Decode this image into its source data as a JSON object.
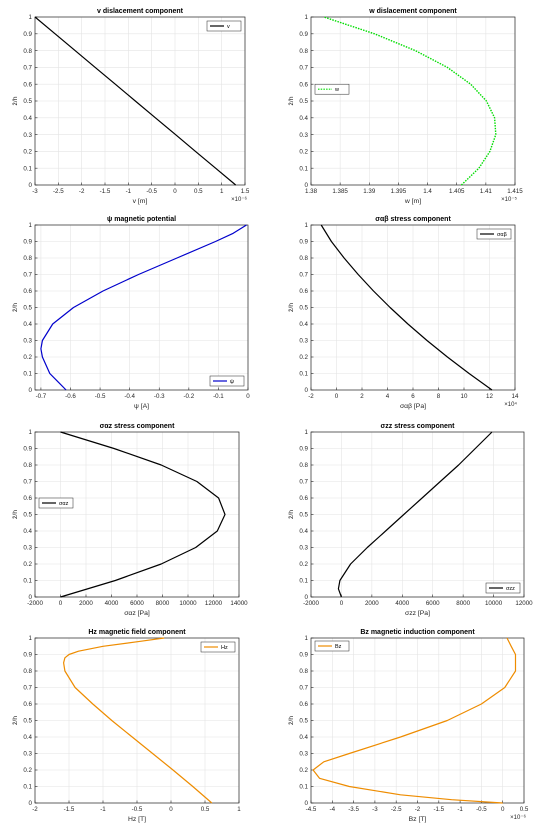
{
  "chart_data": [
    {
      "type": "line",
      "title": "v dislacement component",
      "xlabel": "v [m]",
      "ylabel": "z̄/h",
      "xlim": [
        -3,
        1.5
      ],
      "ylim": [
        0,
        1
      ],
      "xticks": [
        -3,
        -2.5,
        -2,
        -1.5,
        -1,
        -0.5,
        0,
        0.5,
        1,
        1.5
      ],
      "xtick_labels": [
        "-3",
        "-2.5",
        "-2",
        "-1.5",
        "-1",
        "-0.5",
        "0",
        "0.5",
        "1",
        "1.5"
      ],
      "x_exponent": "×10⁻⁶",
      "yticks": [
        0,
        0.1,
        0.2,
        0.3,
        0.4,
        0.5,
        0.6,
        0.7,
        0.8,
        0.9,
        1
      ],
      "ytick_labels": [
        "0",
        "0.1",
        "0.2",
        "0.3",
        "0.4",
        "0.5",
        "0.6",
        "0.7",
        "0.8",
        "0.9",
        "1"
      ],
      "grid": true,
      "legend": {
        "position": "top-right",
        "label": "v"
      },
      "series": [
        {
          "name": "v",
          "color": "#000000",
          "dash": "solid",
          "y": [
            0,
            0.1,
            0.2,
            0.3,
            0.4,
            0.5,
            0.6,
            0.7,
            0.8,
            0.9,
            1
          ],
          "x": [
            1.3,
            0.87,
            0.44,
            0.01,
            -0.42,
            -0.85,
            -1.28,
            -1.71,
            -2.14,
            -2.57,
            -3.0
          ]
        }
      ]
    },
    {
      "type": "line",
      "title": "w dislacement component",
      "xlabel": "w [m]",
      "ylabel": "z̄/h",
      "xlim": [
        1.38,
        1.415
      ],
      "ylim": [
        0,
        1
      ],
      "xticks": [
        1.38,
        1.385,
        1.39,
        1.395,
        1.4,
        1.405,
        1.41,
        1.415
      ],
      "xtick_labels": [
        "1.38",
        "1.385",
        "1.39",
        "1.395",
        "1.4",
        "1.405",
        "1.41",
        "1.415"
      ],
      "x_exponent": "×10⁻⁵",
      "yticks": [
        0,
        0.1,
        0.2,
        0.3,
        0.4,
        0.5,
        0.6,
        0.7,
        0.8,
        0.9,
        1
      ],
      "ytick_labels": [
        "0",
        "0.1",
        "0.2",
        "0.3",
        "0.4",
        "0.5",
        "0.6",
        "0.7",
        "0.8",
        "0.9",
        "1"
      ],
      "grid": true,
      "legend": {
        "position": "middle-left",
        "label": "w"
      },
      "series": [
        {
          "name": "w",
          "color": "#00dd00",
          "dash": "dotted",
          "y": [
            0,
            0.1,
            0.2,
            0.3,
            0.4,
            0.5,
            0.6,
            0.7,
            0.8,
            0.9,
            1
          ],
          "x": [
            1.4058,
            1.4088,
            1.4107,
            1.4117,
            1.4115,
            1.4101,
            1.4074,
            1.4034,
            1.3979,
            1.3909,
            1.3822
          ]
        }
      ]
    },
    {
      "type": "line",
      "title": "ψ magnetic potential",
      "xlabel": "ψ [A]",
      "ylabel": "z̄/h",
      "xlim": [
        -0.72,
        0
      ],
      "ylim": [
        0,
        1
      ],
      "xticks": [
        -0.7,
        -0.6,
        -0.5,
        -0.4,
        -0.3,
        -0.2,
        -0.1,
        0
      ],
      "xtick_labels": [
        "-0.7",
        "-0.6",
        "-0.5",
        "-0.4",
        "-0.3",
        "-0.2",
        "-0.1",
        "0"
      ],
      "x_exponent": "",
      "yticks": [
        0,
        0.1,
        0.2,
        0.3,
        0.4,
        0.5,
        0.6,
        0.7,
        0.8,
        0.9,
        1
      ],
      "ytick_labels": [
        "0",
        "0.1",
        "0.2",
        "0.3",
        "0.4",
        "0.5",
        "0.6",
        "0.7",
        "0.8",
        "0.9",
        "1"
      ],
      "grid": true,
      "legend": {
        "position": "bottom-right",
        "label": "ψ"
      },
      "series": [
        {
          "name": "ψ",
          "color": "#0000cc",
          "dash": "solid",
          "y": [
            0,
            0.1,
            0.2,
            0.25,
            0.3,
            0.4,
            0.5,
            0.6,
            0.7,
            0.8,
            0.9,
            0.95,
            1
          ],
          "x": [
            -0.615,
            -0.67,
            -0.695,
            -0.7,
            -0.695,
            -0.66,
            -0.59,
            -0.49,
            -0.37,
            -0.24,
            -0.11,
            -0.05,
            -0.005
          ]
        }
      ]
    },
    {
      "type": "line",
      "title": "σαβ stress component",
      "xlabel": "σαβ [Pa]",
      "ylabel": "z̄/h",
      "xlim": [
        -2,
        14
      ],
      "ylim": [
        0,
        1
      ],
      "xticks": [
        -2,
        0,
        2,
        4,
        6,
        8,
        10,
        12,
        14
      ],
      "xtick_labels": [
        "-2",
        "0",
        "2",
        "4",
        "6",
        "8",
        "10",
        "12",
        "14"
      ],
      "x_exponent": "×10⁴",
      "yticks": [
        0,
        0.1,
        0.2,
        0.3,
        0.4,
        0.5,
        0.6,
        0.7,
        0.8,
        0.9,
        1
      ],
      "ytick_labels": [
        "0",
        "0.1",
        "0.2",
        "0.3",
        "0.4",
        "0.5",
        "0.6",
        "0.7",
        "0.8",
        "0.9",
        "1"
      ],
      "grid": true,
      "legend": {
        "position": "top-right",
        "label": "σαβ"
      },
      "series": [
        {
          "name": "σαβ",
          "color": "#000000",
          "dash": "solid",
          "y": [
            0,
            0.1,
            0.2,
            0.3,
            0.4,
            0.5,
            0.6,
            0.7,
            0.8,
            0.9,
            1
          ],
          "x": [
            12.2,
            10.4,
            8.7,
            7.1,
            5.6,
            4.2,
            2.9,
            1.7,
            0.6,
            -0.4,
            -1.2
          ]
        }
      ]
    },
    {
      "type": "line",
      "title": "σαz stress component",
      "xlabel": "σαz [Pa]",
      "ylabel": "z̄/h",
      "xlim": [
        -2000,
        14000
      ],
      "ylim": [
        0,
        1
      ],
      "xticks": [
        -2000,
        0,
        2000,
        4000,
        6000,
        8000,
        10000,
        12000,
        14000
      ],
      "xtick_labels": [
        "-2000",
        "0",
        "2000",
        "4000",
        "6000",
        "8000",
        "10000",
        "12000",
        "14000"
      ],
      "x_exponent": "",
      "yticks": [
        0,
        0.1,
        0.2,
        0.3,
        0.4,
        0.5,
        0.6,
        0.7,
        0.8,
        0.9,
        1
      ],
      "ytick_labels": [
        "0",
        "0.1",
        "0.2",
        "0.3",
        "0.4",
        "0.5",
        "0.6",
        "0.7",
        "0.8",
        "0.9",
        "1"
      ],
      "grid": true,
      "legend": {
        "position": "middle-left",
        "label": "σαz"
      },
      "series": [
        {
          "name": "σαz",
          "color": "#000000",
          "dash": "solid",
          "y": [
            0,
            0.1,
            0.2,
            0.3,
            0.4,
            0.5,
            0.6,
            0.7,
            0.8,
            0.9,
            1
          ],
          "x": [
            0,
            4300,
            7900,
            10600,
            12300,
            12900,
            12400,
            10700,
            7900,
            4200,
            0
          ]
        }
      ]
    },
    {
      "type": "line",
      "title": "σzz stress component",
      "xlabel": "σzz [Pa]",
      "ylabel": "z̄/h",
      "xlim": [
        -2000,
        12000
      ],
      "ylim": [
        0,
        1
      ],
      "xticks": [
        -2000,
        0,
        2000,
        4000,
        6000,
        8000,
        10000,
        12000
      ],
      "xtick_labels": [
        "-2000",
        "0",
        "2000",
        "4000",
        "6000",
        "8000",
        "10000",
        "12000"
      ],
      "x_exponent": "",
      "yticks": [
        0,
        0.1,
        0.2,
        0.3,
        0.4,
        0.5,
        0.6,
        0.7,
        0.8,
        0.9,
        1
      ],
      "ytick_labels": [
        "0",
        "0.1",
        "0.2",
        "0.3",
        "0.4",
        "0.5",
        "0.6",
        "0.7",
        "0.8",
        "0.9",
        "1"
      ],
      "grid": true,
      "legend": {
        "position": "bottom-right",
        "label": "σzz"
      },
      "series": [
        {
          "name": "σzz",
          "color": "#000000",
          "dash": "solid",
          "y": [
            0,
            0.05,
            0.1,
            0.2,
            0.3,
            0.4,
            0.5,
            0.6,
            0.7,
            0.8,
            0.9,
            1
          ],
          "x": [
            0,
            -200,
            -100,
            600,
            1700,
            2900,
            4100,
            5300,
            6500,
            7700,
            8800,
            9900
          ]
        }
      ]
    },
    {
      "type": "line",
      "title": "Hz magnetic field component",
      "xlabel": "Hz [T]",
      "ylabel": "z̄/h",
      "xlim": [
        -2,
        1
      ],
      "ylim": [
        0,
        1
      ],
      "xticks": [
        -2,
        -1.5,
        -1,
        -0.5,
        0,
        0.5,
        1
      ],
      "xtick_labels": [
        "-2",
        "-1.5",
        "-1",
        "-0.5",
        "0",
        "0.5",
        "1"
      ],
      "x_exponent": "",
      "yticks": [
        0,
        0.1,
        0.2,
        0.3,
        0.4,
        0.5,
        0.6,
        0.7,
        0.8,
        0.9,
        1
      ],
      "ytick_labels": [
        "0",
        "0.1",
        "0.2",
        "0.3",
        "0.4",
        "0.5",
        "0.6",
        "0.7",
        "0.8",
        "0.9",
        "1"
      ],
      "grid": true,
      "legend": {
        "position": "top-right",
        "label": "Hz"
      },
      "series": [
        {
          "name": "Hz",
          "color": "#ee8c00",
          "dash": "solid",
          "y": [
            0,
            0.1,
            0.2,
            0.3,
            0.4,
            0.5,
            0.6,
            0.7,
            0.8,
            0.85,
            0.88,
            0.9,
            0.92,
            0.95,
            0.98,
            1
          ],
          "x": [
            0.6,
            0.32,
            0.03,
            -0.27,
            -0.57,
            -0.87,
            -1.15,
            -1.41,
            -1.56,
            -1.58,
            -1.56,
            -1.5,
            -1.36,
            -1.0,
            -0.45,
            -0.1
          ]
        }
      ]
    },
    {
      "type": "line",
      "title": "Bz magnetic induction component",
      "xlabel": "Bz [T]",
      "ylabel": "z̄/h",
      "xlim": [
        -4.5,
        0.5
      ],
      "ylim": [
        0,
        1
      ],
      "xticks": [
        -4.5,
        -4,
        -3.5,
        -3,
        -2.5,
        -2,
        -1.5,
        -1,
        -0.5,
        0,
        0.5
      ],
      "xtick_labels": [
        "-4.5",
        "-4",
        "-3.5",
        "-3",
        "-2.5",
        "-2",
        "-1.5",
        "-1",
        "-0.5",
        "0",
        "0.5"
      ],
      "x_exponent": "×10⁻⁶",
      "yticks": [
        0,
        0.1,
        0.2,
        0.3,
        0.4,
        0.5,
        0.6,
        0.7,
        0.8,
        0.9,
        1
      ],
      "ytick_labels": [
        "0",
        "0.1",
        "0.2",
        "0.3",
        "0.4",
        "0.5",
        "0.6",
        "0.7",
        "0.8",
        "0.9",
        "1"
      ],
      "grid": true,
      "legend": {
        "position": "top-left",
        "label": "Bz"
      },
      "series": [
        {
          "name": "Bz",
          "color": "#ee8c00",
          "dash": "solid",
          "y": [
            0,
            0.02,
            0.05,
            0.1,
            0.15,
            0.2,
            0.25,
            0.3,
            0.4,
            0.5,
            0.6,
            0.7,
            0.8,
            0.9,
            0.95,
            1
          ],
          "x": [
            0,
            -1.2,
            -2.4,
            -3.6,
            -4.3,
            -4.45,
            -4.2,
            -3.6,
            -2.4,
            -1.3,
            -0.5,
            0.05,
            0.3,
            0.3,
            0.2,
            0.1
          ]
        }
      ]
    }
  ]
}
